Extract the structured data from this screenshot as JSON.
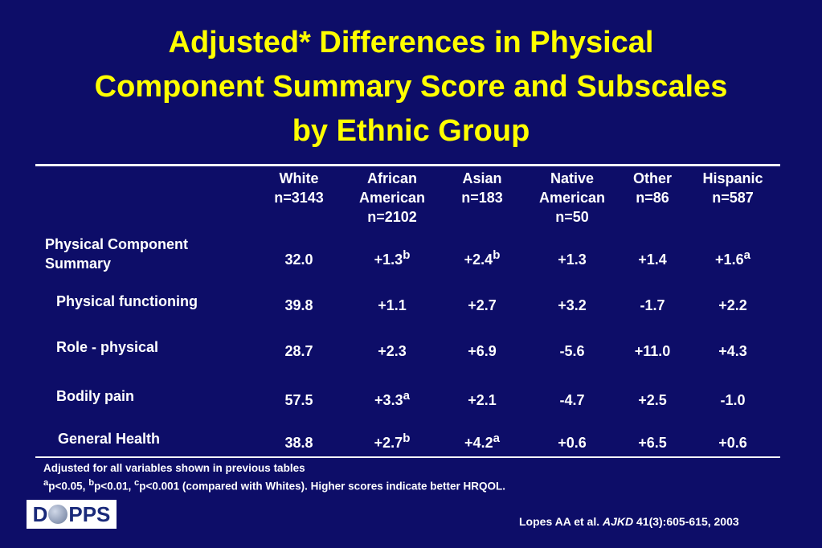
{
  "title": {
    "line1": "Adjusted* Differences in Physical",
    "line2": "Component Summary Score and Subscales",
    "line3": "by Ethnic Group"
  },
  "table": {
    "columns": [
      {
        "line1": "",
        "line2": "White",
        "line3": "n=3143"
      },
      {
        "line1": "African",
        "line2": "American",
        "line3": "n=2102"
      },
      {
        "line1": "",
        "line2": "Asian",
        "line3": "n=183"
      },
      {
        "line1": "Native",
        "line2": "American",
        "line3": "n=50"
      },
      {
        "line1": "",
        "line2": "Other",
        "line3": "n=86"
      },
      {
        "line1": "",
        "line2": "Hispanic",
        "line3": "n=587"
      }
    ],
    "rows": [
      {
        "label_line1": "Physical Component",
        "label_line2": "Summary",
        "cells": [
          {
            "v": "32.0",
            "sup": ""
          },
          {
            "v": "+1.3",
            "sup": "b"
          },
          {
            "v": "+2.4",
            "sup": "b"
          },
          {
            "v": "+1.3",
            "sup": ""
          },
          {
            "v": "+1.4",
            "sup": ""
          },
          {
            "v": "+1.6",
            "sup": "a"
          }
        ]
      },
      {
        "label": "Physical functioning",
        "cells": [
          {
            "v": "39.8",
            "sup": ""
          },
          {
            "v": "+1.1",
            "sup": ""
          },
          {
            "v": "+2.7",
            "sup": ""
          },
          {
            "v": "+3.2",
            "sup": ""
          },
          {
            "v": "-1.7",
            "sup": ""
          },
          {
            "v": "+2.2",
            "sup": ""
          }
        ]
      },
      {
        "label": "Role - physical",
        "cells": [
          {
            "v": "28.7",
            "sup": ""
          },
          {
            "v": "+2.3",
            "sup": ""
          },
          {
            "v": "+6.9",
            "sup": ""
          },
          {
            "v": "-5.6",
            "sup": ""
          },
          {
            "v": "+11.0",
            "sup": ""
          },
          {
            "v": "+4.3",
            "sup": ""
          }
        ]
      },
      {
        "label": "Bodily pain",
        "cells": [
          {
            "v": "57.5",
            "sup": ""
          },
          {
            "v": "+3.3",
            "sup": "a"
          },
          {
            "v": "+2.1",
            "sup": ""
          },
          {
            "v": "-4.7",
            "sup": ""
          },
          {
            "v": "+2.5",
            "sup": ""
          },
          {
            "v": "-1.0",
            "sup": ""
          }
        ]
      },
      {
        "label": "General Health",
        "cells": [
          {
            "v": "38.8",
            "sup": ""
          },
          {
            "v": "+2.7",
            "sup": "b"
          },
          {
            "v": "+4.2",
            "sup": "a"
          },
          {
            "v": "+0.6",
            "sup": ""
          },
          {
            "v": "+6.5",
            "sup": ""
          },
          {
            "v": "+0.6",
            "sup": ""
          }
        ]
      }
    ]
  },
  "footnotes": {
    "adjusted": "Adjusted for all variables shown in previous tables",
    "sig_a": "a",
    "sig_a_text": "p<0.05, ",
    "sig_b": "b",
    "sig_b_text": "p<0.01, ",
    "sig_c": "c",
    "sig_c_text": "p<0.001 (compared with Whites). Higher scores indicate better HRQOL."
  },
  "logo": {
    "left": "D",
    "right": "PPS"
  },
  "citation": {
    "authors": "Lopes AA et al.",
    "journal": "AJKD",
    "ref": "41(3):605-615, 2003"
  },
  "colors": {
    "background": "#0d0d68",
    "title": "#ffff00",
    "text": "#ffffff"
  }
}
